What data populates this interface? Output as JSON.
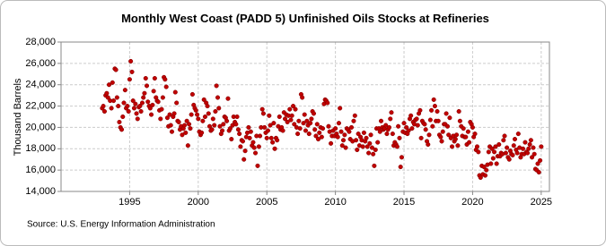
{
  "chart_data": {
    "type": "scatter",
    "title": "Monthly West Coast (PADD 5) Unfinished Oils Stocks at Refineries",
    "y_label": "Thousand Barrels",
    "source": "Source: U.S. Energy Information Administration",
    "xlim": [
      1990,
      2025.6
    ],
    "ylim": [
      14000,
      28000
    ],
    "xticks": [
      1995,
      2000,
      2005,
      2010,
      2015,
      2020,
      2025
    ],
    "yticks": [
      {
        "value": 14000,
        "label": "14,000"
      },
      {
        "value": 16000,
        "label": "16,000"
      },
      {
        "value": 18000,
        "label": "18,000"
      },
      {
        "value": 20000,
        "label": "20,000"
      },
      {
        "value": 22000,
        "label": "22,000"
      },
      {
        "value": 24000,
        "label": "24,000"
      },
      {
        "value": 26000,
        "label": "26,000"
      },
      {
        "value": 28000,
        "label": "28,000"
      }
    ],
    "grid": true,
    "color": "#c00000",
    "x": [
      1993,
      1993.08,
      1993.17,
      1993.25,
      1993.33,
      1993.42,
      1993.5,
      1993.58,
      1993.67,
      1993.75,
      1993.83,
      1993.92,
      1994,
      1994.08,
      1994.17,
      1994.25,
      1994.33,
      1994.42,
      1994.5,
      1994.58,
      1994.67,
      1994.75,
      1994.83,
      1994.92,
      1995,
      1995.08,
      1995.17,
      1995.25,
      1995.33,
      1995.42,
      1995.5,
      1995.58,
      1995.67,
      1995.75,
      1995.83,
      1995.92,
      1996,
      1996.08,
      1996.17,
      1996.25,
      1996.33,
      1996.42,
      1996.5,
      1996.58,
      1996.67,
      1996.75,
      1996.83,
      1996.92,
      1997,
      1997.08,
      1997.17,
      1997.25,
      1997.33,
      1997.42,
      1997.5,
      1997.58,
      1997.67,
      1997.75,
      1997.83,
      1997.92,
      1998,
      1998.08,
      1998.17,
      1998.25,
      1998.33,
      1998.42,
      1998.5,
      1998.58,
      1998.67,
      1998.75,
      1998.83,
      1998.92,
      1999,
      1999.08,
      1999.17,
      1999.25,
      1999.33,
      1999.42,
      1999.5,
      1999.58,
      1999.67,
      1999.75,
      1999.83,
      1999.92,
      2000,
      2000.08,
      2000.17,
      2000.25,
      2000.33,
      2000.42,
      2000.5,
      2000.58,
      2000.67,
      2000.75,
      2000.83,
      2000.92,
      2001,
      2001.08,
      2001.17,
      2001.25,
      2001.33,
      2001.42,
      2001.5,
      2001.58,
      2001.67,
      2001.75,
      2001.83,
      2001.92,
      2002,
      2002.08,
      2002.17,
      2002.25,
      2002.33,
      2002.42,
      2002.5,
      2002.58,
      2002.67,
      2002.75,
      2002.83,
      2002.92,
      2003,
      2003.08,
      2003.17,
      2003.25,
      2003.33,
      2003.42,
      2003.5,
      2003.58,
      2003.67,
      2003.75,
      2003.83,
      2003.92,
      2004,
      2004.08,
      2004.17,
      2004.25,
      2004.33,
      2004.42,
      2004.5,
      2004.58,
      2004.67,
      2004.75,
      2004.83,
      2004.92,
      2005,
      2005.08,
      2005.17,
      2005.25,
      2005.33,
      2005.42,
      2005.5,
      2005.58,
      2005.67,
      2005.75,
      2005.83,
      2005.92,
      2006,
      2006.08,
      2006.17,
      2006.25,
      2006.33,
      2006.42,
      2006.5,
      2006.58,
      2006.67,
      2006.75,
      2006.83,
      2006.92,
      2007,
      2007.08,
      2007.17,
      2007.25,
      2007.33,
      2007.42,
      2007.5,
      2007.58,
      2007.67,
      2007.75,
      2007.83,
      2007.92,
      2008,
      2008.08,
      2008.17,
      2008.25,
      2008.33,
      2008.42,
      2008.5,
      2008.58,
      2008.67,
      2008.75,
      2008.83,
      2008.92,
      2009,
      2009.08,
      2009.17,
      2009.25,
      2009.33,
      2009.42,
      2009.5,
      2009.58,
      2009.67,
      2009.75,
      2009.83,
      2009.92,
      2010,
      2010.08,
      2010.17,
      2010.25,
      2010.33,
      2010.42,
      2010.5,
      2010.58,
      2010.67,
      2010.75,
      2010.83,
      2010.92,
      2011,
      2011.08,
      2011.17,
      2011.25,
      2011.33,
      2011.42,
      2011.5,
      2011.58,
      2011.67,
      2011.75,
      2011.83,
      2011.92,
      2012,
      2012.08,
      2012.17,
      2012.25,
      2012.33,
      2012.42,
      2012.5,
      2012.58,
      2012.67,
      2012.75,
      2012.83,
      2012.92,
      2013,
      2013.08,
      2013.17,
      2013.25,
      2013.33,
      2013.42,
      2013.5,
      2013.58,
      2013.67,
      2013.75,
      2013.83,
      2013.92,
      2014,
      2014.08,
      2014.17,
      2014.25,
      2014.33,
      2014.42,
      2014.5,
      2014.58,
      2014.67,
      2014.75,
      2014.83,
      2014.92,
      2015,
      2015.08,
      2015.17,
      2015.25,
      2015.33,
      2015.42,
      2015.5,
      2015.58,
      2015.67,
      2015.75,
      2015.83,
      2015.92,
      2016,
      2016.08,
      2016.17,
      2016.25,
      2016.33,
      2016.42,
      2016.5,
      2016.58,
      2016.67,
      2016.75,
      2016.83,
      2016.92,
      2017,
      2017.08,
      2017.17,
      2017.25,
      2017.33,
      2017.42,
      2017.5,
      2017.58,
      2017.67,
      2017.75,
      2017.83,
      2017.92,
      2018,
      2018.08,
      2018.17,
      2018.25,
      2018.33,
      2018.42,
      2018.5,
      2018.58,
      2018.67,
      2018.75,
      2018.83,
      2018.92,
      2019,
      2019.08,
      2019.17,
      2019.25,
      2019.33,
      2019.42,
      2019.5,
      2019.58,
      2019.67,
      2019.75,
      2019.83,
      2019.92,
      2020,
      2020.08,
      2020.17,
      2020.25,
      2020.33,
      2020.42,
      2020.5,
      2020.58,
      2020.67,
      2020.75,
      2020.83,
      2020.92,
      2021,
      2021.08,
      2021.17,
      2021.25,
      2021.33,
      2021.42,
      2021.5,
      2021.58,
      2021.67,
      2021.75,
      2021.83,
      2021.92,
      2022,
      2022.08,
      2022.17,
      2022.25,
      2022.33,
      2022.42,
      2022.5,
      2022.58,
      2022.67,
      2022.75,
      2022.83,
      2022.92,
      2023,
      2023.08,
      2023.17,
      2023.25,
      2023.33,
      2023.42,
      2023.5,
      2023.58,
      2023.67,
      2023.75,
      2023.83,
      2023.92,
      2024,
      2024.08,
      2024.17,
      2024.25,
      2024.33,
      2024.42,
      2024.5,
      2024.58,
      2024.67,
      2024.75,
      2024.83,
      2024.92,
      2025
    ],
    "values": [
      21800,
      22000,
      21500,
      23000,
      23200,
      22800,
      24000,
      22500,
      21800,
      24200,
      22500,
      25500,
      25400,
      22800,
      22000,
      20500,
      20000,
      19800,
      21000,
      22300,
      23500,
      21800,
      22000,
      21500,
      24500,
      26200,
      25200,
      22500,
      21800,
      22200,
      21300,
      20800,
      21900,
      22000,
      21500,
      22300,
      22800,
      23200,
      24600,
      23900,
      22400,
      22000,
      21800,
      21200,
      22100,
      23400,
      24600,
      22800,
      22500,
      22400,
      21600,
      20800,
      21700,
      22800,
      24700,
      24500,
      23800,
      20900,
      20100,
      21200,
      20200,
      19600,
      21000,
      21300,
      23300,
      22300,
      20600,
      20500,
      19800,
      20100,
      19300,
      19900,
      20200,
      19500,
      20600,
      18300,
      20300,
      19900,
      21200,
      23100,
      22100,
      21800,
      21600,
      21200,
      20800,
      19600,
      19300,
      19500,
      20600,
      22600,
      21000,
      22300,
      22000,
      21300,
      20100,
      19700,
      19800,
      20800,
      20200,
      21500,
      23900,
      22800,
      21800,
      20100,
      19400,
      19700,
      20300,
      21000,
      20900,
      20600,
      22700,
      19700,
      19900,
      18900,
      20200,
      21000,
      20500,
      20300,
      21000,
      19800,
      19400,
      18200,
      18800,
      18700,
      17000,
      17800,
      19100,
      19500,
      20000,
      19000,
      19600,
      18300,
      18600,
      18100,
      17600,
      19200,
      16400,
      18200,
      19200,
      20000,
      21700,
      21300,
      20000,
      19500,
      19000,
      19700,
      21100,
      20200,
      19000,
      18600,
      20400,
      18000,
      19000,
      18800,
      20100,
      21000,
      19800,
      20000,
      19700,
      21400,
      20800,
      21200,
      20500,
      21100,
      21700,
      20700,
      21100,
      22000,
      20300,
      21700,
      20000,
      19400,
      20600,
      19900,
      23100,
      22800,
      20400,
      21200,
      19700,
      20600,
      20200,
      19400,
      20400,
      20800,
      21500,
      21300,
      19800,
      19200,
      20300,
      18900,
      19500,
      20000,
      19100,
      19900,
      22200,
      22600,
      22500,
      22300,
      20100,
      19600,
      18500,
      19200,
      19700,
      19200,
      19900,
      19400,
      19100,
      20400,
      21800,
      19600,
      18300,
      18800,
      19300,
      18100,
      19900,
      19800,
      19600,
      18900,
      20000,
      18700,
      20600,
      21100,
      18800,
      17900,
      19400,
      18300,
      19100,
      18800,
      18200,
      19500,
      18700,
      19000,
      18200,
      17600,
      18500,
      19300,
      18100,
      17500,
      16400,
      17900,
      19900,
      18600,
      19900,
      19600,
      20600,
      20000,
      19800,
      19900,
      20200,
      19400,
      19800,
      20000,
      20800,
      21400,
      19400,
      18300,
      18600,
      18400,
      18200,
      20100,
      19000,
      16300,
      17200,
      19600,
      20400,
      19500,
      20000,
      19400,
      19700,
      20800,
      21100,
      19900,
      20500,
      20300,
      20700,
      20800,
      20200,
      21300,
      21600,
      19000,
      20600,
      20400,
      20300,
      19800,
      18700,
      18400,
      19300,
      20700,
      21600,
      20100,
      22600,
      22000,
      20600,
      21500,
      20600,
      19300,
      19100,
      18700,
      19600,
      20300,
      20300,
      21300,
      20100,
      19300,
      20900,
      19000,
      18200,
      19200,
      18700,
      18900,
      19300,
      18300,
      21500,
      20600,
      20100,
      19200,
      19900,
      19100,
      19100,
      18400,
      19600,
      18600,
      20500,
      20300,
      20000,
      19100,
      19400,
      17900,
      18200,
      17700,
      15500,
      15300,
      16400,
      15600,
      16300,
      15500,
      16000,
      16500,
      17700,
      18200,
      16600,
      18000,
      17100,
      17700,
      18200,
      16600,
      17300,
      18400,
      17300,
      17600,
      17500,
      18800,
      19200,
      17600,
      18100,
      17200,
      17000,
      17800,
      17500,
      17400,
      18300,
      18900,
      17900,
      17600,
      19400,
      18100,
      17200,
      17500,
      18000,
      17500,
      18600,
      17700,
      17600,
      18000,
      18400,
      18800,
      17200,
      18100,
      17500,
      16100,
      16000,
      16600,
      15800,
      16900,
      18200
    ]
  }
}
